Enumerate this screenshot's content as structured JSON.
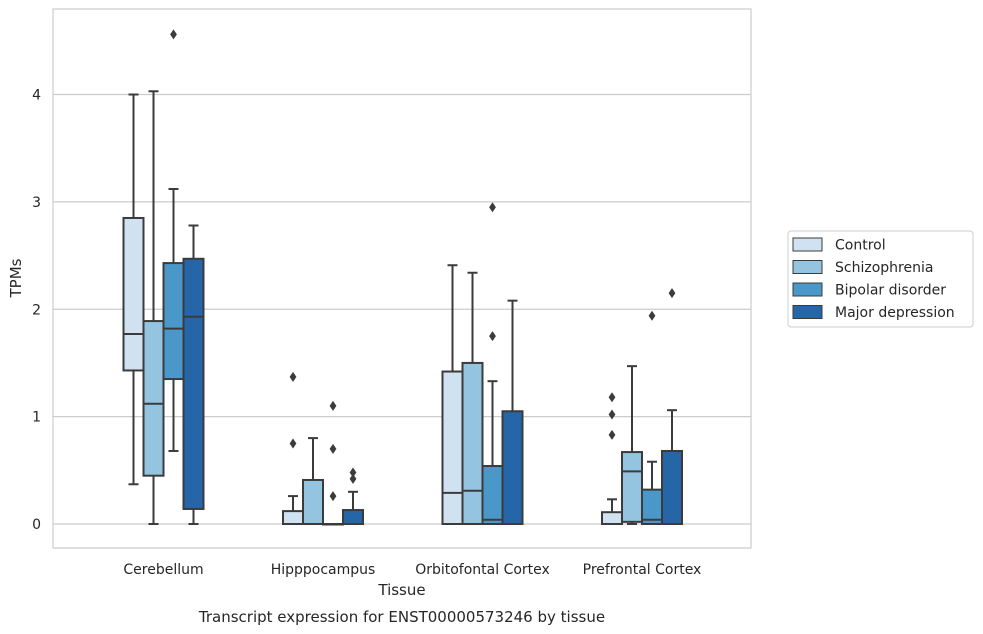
{
  "caption": "Transcript expression for ENST00000573246 by tissue",
  "chart_data": {
    "type": "boxplot",
    "xlabel": "Tissue",
    "ylabel": "TPMs",
    "ylim": [
      -0.22,
      4.8
    ],
    "yticks": [
      0,
      1,
      2,
      3,
      4
    ],
    "grid": "horizontal",
    "legend_position": "right",
    "categories": [
      "Cerebellum",
      "Hipppocampus",
      "Orbitofontal Cortex",
      "Prefrontal Cortex"
    ],
    "series": [
      {
        "name": "Control",
        "color": "#d0e1f2",
        "boxes": [
          {
            "whisker_low": 0.37,
            "q1": 1.43,
            "median": 1.77,
            "q3": 2.85,
            "whisker_high": 4.0,
            "outliers": []
          },
          {
            "whisker_low": 0.0,
            "q1": 0.0,
            "median": 0.0,
            "q3": 0.12,
            "whisker_high": 0.26,
            "outliers": [
              0.75,
              1.37
            ]
          },
          {
            "whisker_low": 0.0,
            "q1": 0.0,
            "median": 0.29,
            "q3": 1.42,
            "whisker_high": 2.41,
            "outliers": []
          },
          {
            "whisker_low": 0.0,
            "q1": 0.0,
            "median": 0.0,
            "q3": 0.11,
            "whisker_high": 0.23,
            "outliers": [
              0.83,
              1.02,
              1.18
            ]
          }
        ]
      },
      {
        "name": "Schizophrenia",
        "color": "#94c4df",
        "boxes": [
          {
            "whisker_low": 0.0,
            "q1": 0.45,
            "median": 1.12,
            "q3": 1.89,
            "whisker_high": 4.03,
            "outliers": []
          },
          {
            "whisker_low": 0.0,
            "q1": 0.0,
            "median": 0.0,
            "q3": 0.41,
            "whisker_high": 0.8,
            "outliers": []
          },
          {
            "whisker_low": 0.0,
            "q1": 0.0,
            "median": 0.31,
            "q3": 1.5,
            "whisker_high": 2.34,
            "outliers": []
          },
          {
            "whisker_low": 0.0,
            "q1": 0.02,
            "median": 0.49,
            "q3": 0.67,
            "whisker_high": 1.47,
            "outliers": []
          }
        ]
      },
      {
        "name": "Bipolar disorder",
        "color": "#4a98c9",
        "boxes": [
          {
            "whisker_low": 0.68,
            "q1": 1.35,
            "median": 1.82,
            "q3": 2.43,
            "whisker_high": 3.12,
            "outliers": [
              4.56
            ]
          },
          {
            "whisker_low": 0.0,
            "q1": 0.0,
            "median": 0.0,
            "q3": 0.0,
            "whisker_high": 0.0,
            "outliers": [
              0.26,
              0.7,
              1.1
            ]
          },
          {
            "whisker_low": 0.0,
            "q1": 0.0,
            "median": 0.04,
            "q3": 0.54,
            "whisker_high": 1.33,
            "outliers": [
              1.75,
              2.95
            ]
          },
          {
            "whisker_low": 0.0,
            "q1": 0.0,
            "median": 0.04,
            "q3": 0.32,
            "whisker_high": 0.58,
            "outliers": [
              1.94
            ]
          }
        ]
      },
      {
        "name": "Major depression",
        "color": "#2566a8",
        "boxes": [
          {
            "whisker_low": 0.0,
            "q1": 0.14,
            "median": 1.93,
            "q3": 2.47,
            "whisker_high": 2.78,
            "outliers": []
          },
          {
            "whisker_low": 0.0,
            "q1": 0.0,
            "median": 0.0,
            "q3": 0.13,
            "whisker_high": 0.3,
            "outliers": [
              0.42,
              0.48
            ]
          },
          {
            "whisker_low": 0.0,
            "q1": 0.0,
            "median": 0.0,
            "q3": 1.05,
            "whisker_high": 2.08,
            "outliers": []
          },
          {
            "whisker_low": 0.0,
            "q1": 0.0,
            "median": 0.0,
            "q3": 0.68,
            "whisker_high": 1.06,
            "outliers": [
              2.15
            ]
          }
        ]
      }
    ]
  }
}
